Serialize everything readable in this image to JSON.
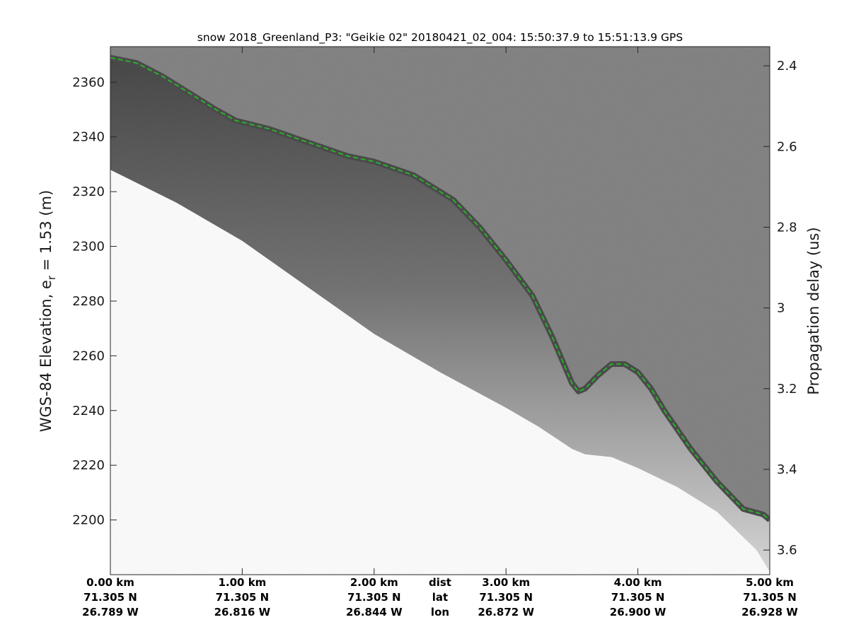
{
  "chart_data": {
    "type": "line",
    "title": "snow 2018_Greenland_P3: \"Geikie 02\"  20180421_02_004: 15:50:37.9 to 15:51:13.9 GPS",
    "ylabel_main": "WGS-84 Elevation, e",
    "ylabel_sub": "r",
    "ylabel_tail": " = 1.53 (m)",
    "y2label": "Propagation delay (us)",
    "xlim_km": [
      0,
      5.0
    ],
    "ylim": [
      2180,
      2373
    ],
    "y_ticks": [
      2200,
      2220,
      2240,
      2260,
      2280,
      2300,
      2320,
      2340,
      2360
    ],
    "y2_ticks": [
      "2.4",
      "2.6",
      "2.8",
      "3",
      "3.2",
      "3.4",
      "3.6"
    ],
    "y2_tick_elev": [
      2366.0,
      2336.5,
      2307.0,
      2277.5,
      2248.0,
      2218.5,
      2189.0
    ],
    "x_ticks": [
      {
        "km": 0.0,
        "dist": "0.00 km",
        "lat": "71.305 N",
        "lon": "26.789 W"
      },
      {
        "km": 1.0,
        "dist": "1.00 km",
        "lat": "71.305 N",
        "lon": "26.816 W"
      },
      {
        "km": 2.0,
        "dist": "2.00 km",
        "lat": "71.305 N",
        "lon": "26.844 W"
      },
      {
        "km": 3.0,
        "dist": "3.00 km",
        "lat": "71.305 N",
        "lon": "26.872 W"
      },
      {
        "km": 4.0,
        "dist": "4.00 km",
        "lat": "71.305 N",
        "lon": "26.900 W"
      },
      {
        "km": 5.0,
        "dist": "5.00 km",
        "lat": "71.305 N",
        "lon": "26.928 W"
      }
    ],
    "row_labels": {
      "km": 2.5,
      "dist": "dist",
      "lat": "lat",
      "lon": "lon"
    },
    "surface": {
      "x": [
        0.0,
        0.2,
        0.4,
        0.6,
        0.8,
        0.95,
        1.2,
        1.5,
        1.8,
        2.0,
        2.3,
        2.6,
        2.8,
        3.0,
        3.2,
        3.35,
        3.5,
        3.55,
        3.6,
        3.7,
        3.8,
        3.9,
        4.0,
        4.1,
        4.2,
        4.4,
        4.6,
        4.8,
        4.95,
        5.0
      ],
      "y": [
        2369,
        2367,
        2362,
        2356,
        2350,
        2346,
        2343,
        2338,
        2333,
        2331,
        2326,
        2317,
        2307,
        2295,
        2282,
        2267,
        2250,
        2247,
        2248,
        2253,
        2257,
        2257,
        2254,
        2248,
        2240,
        2226,
        2214,
        2204,
        2202,
        2200
      ]
    },
    "bottom_edge": {
      "x": [
        0.0,
        0.5,
        1.0,
        1.5,
        2.0,
        2.5,
        3.0,
        3.25,
        3.5,
        3.6,
        3.8,
        4.0,
        4.3,
        4.6,
        4.9,
        5.0
      ],
      "y": [
        2328,
        2316,
        2302,
        2285,
        2268,
        2254,
        2241,
        2234,
        2226,
        2224,
        2223,
        2219,
        2212,
        2203,
        2189,
        2181
      ]
    },
    "line_style": "dashed",
    "colors": {
      "surface_line": "#22c422",
      "background_echo": "#7b7b7b",
      "surface_band": "#3e3e3e",
      "below_edge": "#ffffff"
    },
    "grid": false,
    "legend": "none"
  }
}
